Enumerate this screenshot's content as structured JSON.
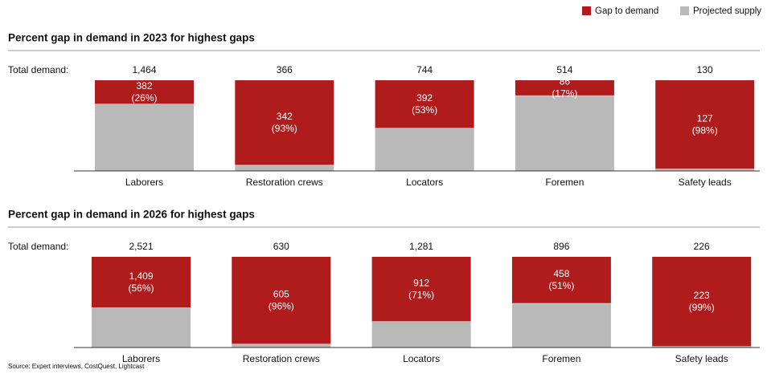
{
  "legend": "top-right",
  "source": "Source: Expert interviews, CostQuest, Lightcast",
  "chart_data": [
    {
      "type": "stacked-percent-bar",
      "title": "Percent gap in demand in 2023 for highest gaps",
      "categories": [
        "Laborers",
        "Restoration crews",
        "Locators",
        "Foremen",
        "Safety leads"
      ],
      "totals": {
        "label": "Total demand:",
        "values": [
          1464,
          366,
          744,
          514,
          130
        ],
        "value_labels": [
          "1,464",
          "366",
          "744",
          "514",
          "130"
        ]
      },
      "series": [
        {
          "name": "Projected supply",
          "color": "#b9b9b9",
          "values": [
            1082,
            24,
            352,
            428,
            3
          ]
        },
        {
          "name": "Gap to demand",
          "color": "#b01c1c",
          "values": [
            382,
            342,
            392,
            86,
            127
          ],
          "percent_labels": [
            "(26%)",
            "(93%)",
            "(53%)",
            "(17%)",
            "(98%)"
          ]
        }
      ]
    },
    {
      "type": "stacked-percent-bar",
      "title": "Percent gap in demand in 2026 for highest gaps",
      "categories": [
        "Laborers",
        "Restoration crews",
        "Locators",
        "Foremen",
        "Safety leads"
      ],
      "totals": {
        "label": "Total demand:",
        "values": [
          2521,
          630,
          1281,
          896,
          226
        ],
        "value_labels": [
          "2,521",
          "630",
          "1,281",
          "896",
          "226"
        ]
      },
      "series": [
        {
          "name": "Projected supply",
          "color": "#b9b9b9",
          "values": [
            1112,
            25,
            369,
            438,
            3
          ]
        },
        {
          "name": "Gap to demand",
          "color": "#b01c1c",
          "values": [
            1409,
            605,
            912,
            458,
            223
          ],
          "value_labels": [
            "1,409",
            "605",
            "912",
            "458",
            "223"
          ],
          "percent_labels": [
            "(56%)",
            "(96%)",
            "(71%)",
            "(51%)",
            "(99%)"
          ]
        }
      ]
    }
  ]
}
